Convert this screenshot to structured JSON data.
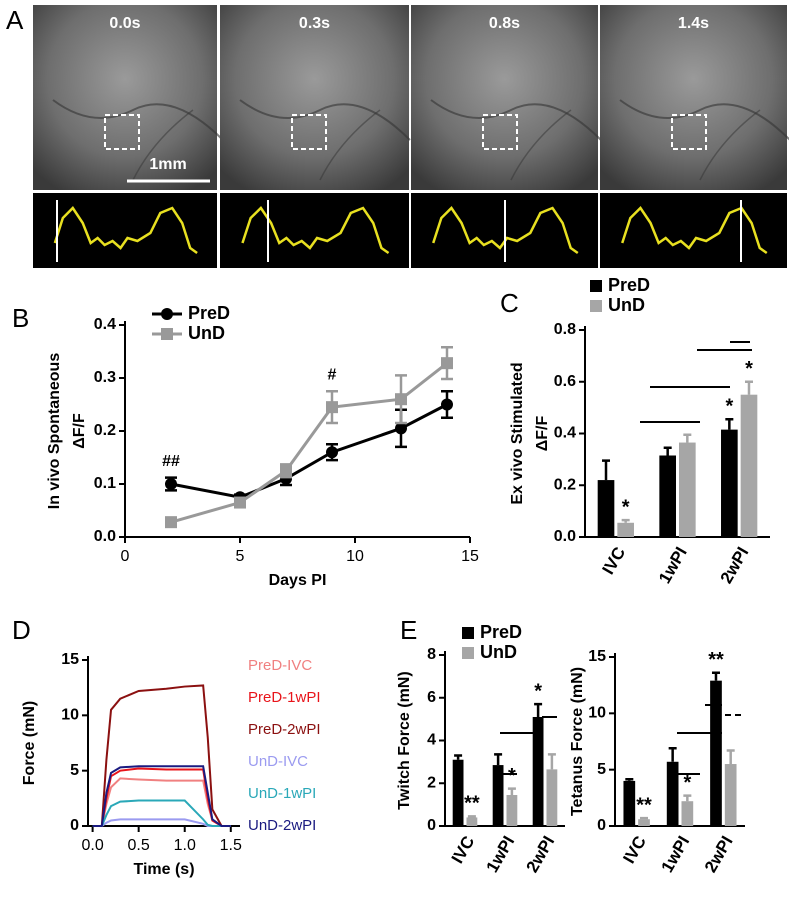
{
  "panel_a": {
    "panel": "A",
    "frames": [
      "0.0s",
      "0.3s",
      "0.8s",
      "1.4s"
    ],
    "scale_bar": "1mm"
  },
  "chart_data": [
    {
      "type": "line",
      "panel": "B",
      "x_label": "Days PI",
      "y_label": [
        "In vivo Spontaneous",
        "ΔF/F"
      ],
      "x": [
        2,
        5,
        7,
        9,
        12,
        14
      ],
      "series": [
        {
          "name": "PreD",
          "color": "#000000",
          "marker": "circle",
          "values": [
            0.1,
            0.075,
            0.11,
            0.16,
            0.205,
            0.25
          ],
          "errors": [
            0.012,
            0.005,
            0.012,
            0.015,
            0.035,
            0.025
          ]
        },
        {
          "name": "UnD",
          "color": "#999999",
          "marker": "square",
          "values": [
            0.028,
            0.065,
            0.125,
            0.245,
            0.26,
            0.328
          ],
          "errors": [
            0.005,
            0.005,
            0.012,
            0.03,
            0.045,
            0.03
          ]
        }
      ],
      "significance": [
        "##",
        null,
        null,
        "#",
        null,
        null
      ],
      "xlim": [
        0,
        15
      ],
      "xticks": [
        0,
        5,
        10,
        15
      ],
      "ylim": [
        0,
        0.4
      ],
      "yticks": [
        {
          "value": 0,
          "label": "0.0"
        },
        0.1,
        0.2,
        0.3,
        0.4
      ]
    },
    {
      "type": "bar",
      "panel": "C",
      "y_label": [
        "Ex vivo Stimulated",
        "ΔF/F"
      ],
      "categories": [
        "IVC",
        "1wPI",
        "2wPI"
      ],
      "series": [
        {
          "name": "PreD",
          "color": "#000000",
          "values": [
            0.22,
            0.315,
            0.415
          ],
          "errors": [
            0.075,
            0.03,
            0.04
          ],
          "significance": [
            null,
            null,
            "*"
          ]
        },
        {
          "name": "UnD",
          "color": "#a6a6a6",
          "values": [
            0.055,
            0.365,
            0.55
          ],
          "errors": [
            0.01,
            0.03,
            0.05
          ],
          "significance": [
            "*",
            null,
            "*"
          ]
        }
      ],
      "ylim": [
        0,
        0.8
      ],
      "yticks": [
        {
          "value": 0,
          "label": "0.0"
        },
        0.2,
        0.4,
        0.6,
        0.8
      ]
    },
    {
      "type": "line",
      "panel": "D",
      "x_label": "Time (s)",
      "y_label": [
        "Force (mN)"
      ],
      "x": [
        0,
        0.1,
        0.15,
        0.2,
        0.3,
        0.5,
        0.8,
        1.0,
        1.2,
        1.25,
        1.3,
        1.4,
        1.5
      ],
      "series": [
        {
          "name": "PreD-IVC",
          "color": "#f08080",
          "values": [
            0,
            0,
            2,
            3.5,
            4.3,
            4.2,
            4.1,
            4.1,
            4.1,
            2,
            0.5,
            0,
            0
          ]
        },
        {
          "name": "PreD-1wPI",
          "color": "#e8141a",
          "values": [
            0,
            0,
            2.5,
            4.5,
            5.0,
            5.2,
            5.1,
            5.1,
            5.1,
            2.5,
            0.5,
            0,
            0
          ]
        },
        {
          "name": "PreD-2wPI",
          "color": "#8b1010",
          "values": [
            0,
            0,
            6,
            10.5,
            11.5,
            12.2,
            12.4,
            12.6,
            12.7,
            8,
            1.5,
            0,
            0
          ]
        },
        {
          "name": "UnD-IVC",
          "color": "#9b9bf0",
          "values": [
            0,
            0,
            0.3,
            0.5,
            0.6,
            0.6,
            0.6,
            0.6,
            0.2,
            0,
            0,
            0,
            0
          ]
        },
        {
          "name": "UnD-1wPI",
          "color": "#2aa8b8",
          "values": [
            0,
            0,
            1,
            1.8,
            2.2,
            2.3,
            2.3,
            2.3,
            0.6,
            0.1,
            0,
            0,
            0
          ]
        },
        {
          "name": "UnD-2wPI",
          "color": "#1a1a80",
          "values": [
            0,
            0,
            3,
            4.8,
            5.3,
            5.4,
            5.4,
            5.4,
            5.4,
            3,
            0.6,
            0,
            0
          ]
        }
      ],
      "xlim": [
        -0.05,
        1.6
      ],
      "xticks": [
        {
          "value": 0,
          "label": "0.0"
        },
        0.5,
        {
          "value": 1,
          "label": "1.0"
        },
        1.5
      ],
      "ylim": [
        0,
        15
      ],
      "yticks": [
        0,
        5,
        10,
        15
      ]
    },
    {
      "type": "bar",
      "panel": "E",
      "y_label": [
        "Twitch Force (mN)"
      ],
      "categories": [
        "IVC",
        "1wPI",
        "2wPI"
      ],
      "series": [
        {
          "name": "PreD",
          "color": "#000000",
          "values": [
            3.1,
            2.85,
            5.1
          ],
          "errors": [
            0.2,
            0.5,
            0.6
          ],
          "significance": [
            null,
            null,
            "*"
          ]
        },
        {
          "name": "UnD",
          "color": "#a6a6a6",
          "values": [
            0.4,
            1.45,
            2.65
          ],
          "errors": [
            0.05,
            0.3,
            0.7
          ],
          "significance": [
            "**",
            "*",
            null
          ]
        }
      ],
      "ylim": [
        0,
        8
      ],
      "yticks": [
        0,
        2,
        4,
        6,
        8
      ]
    },
    {
      "type": "bar",
      "y_label": [
        "Tetanus Force (mN)"
      ],
      "categories": [
        "IVC",
        "1wPI",
        "2wPI"
      ],
      "series": [
        {
          "color": "#000000",
          "values": [
            4.0,
            5.7,
            12.9
          ],
          "errors": [
            0.15,
            1.2,
            0.7
          ],
          "significance": [
            null,
            null,
            "**"
          ]
        },
        {
          "color": "#a6a6a6",
          "values": [
            0.6,
            2.2,
            5.5
          ],
          "errors": [
            0.1,
            0.5,
            1.2
          ],
          "significance": [
            "**",
            "*",
            null
          ]
        }
      ],
      "ylim": [
        0,
        15
      ],
      "yticks": [
        0,
        5,
        10,
        15
      ]
    }
  ]
}
